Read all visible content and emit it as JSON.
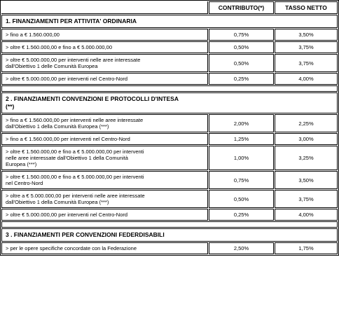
{
  "header": {
    "contributo": "CONTRIBUTO(*)",
    "tasso": "TASSO NETTO"
  },
  "sections": [
    {
      "title": "1. FINANZIAMENTI PER ATTIVITA' ORDINARIA",
      "rows": [
        {
          "label": "> fino a € 1.560.000,00",
          "contributo": "0,75%",
          "tasso": "3,50%"
        },
        {
          "label": "> oltre € 1.560.000,00 e fino a € 5.000.000,00",
          "contributo": "0,50%",
          "tasso": "3,75%"
        },
        {
          "label": "> oltre € 5.000.000,00 per interventi nelle aree interessate dall'Obiettivo 1 delle Comunità Europea",
          "contributo": "0,50%",
          "tasso": "3,75%"
        },
        {
          "label": "> oltre € 5.000.000,00 per interventi nel Centro-Nord",
          "contributo": "0,25%",
          "tasso": "4,00%"
        }
      ]
    },
    {
      "title": "2 . FINANZIAMENTI CONVENZIONI E PROTOCOLLI D'INTESA (**)",
      "rows": [
        {
          "label": "> fino a € 1.560.000,00 per interventi nelle aree interessate dall'Obiettivo 1 della Comunità Europea (***)",
          "contributo": "2,00%",
          "tasso": "2,25%"
        },
        {
          "label": "> fino a € 1.560.000,00 per interventi nel Centro-Nord",
          "contributo": "1,25%",
          "tasso": "3,00%"
        },
        {
          "label": "> oltre € 1.560.000,00 e fino a € 5.000.000,00 per interventi nelle aree interessate dall'Obiettivo 1 della Comunità Europea (***)",
          "contributo": "1,00%",
          "tasso": "3,25%"
        },
        {
          "label": "> oltre € 1.560.000,00 e fino a € 5.000.000,00 per interventi nel Centro-Nord",
          "contributo": "0,75%",
          "tasso": "3,50%"
        },
        {
          "label": "> oltre a € 5.000.000,00 per interventi nelle aree interessate dall'Obiettivo 1 della Comunità Europea (***)",
          "contributo": "0,50%",
          "tasso": "3,75%"
        },
        {
          "label": "> oltre € 5.000.000,00 per interventi nel Centro-Nord",
          "contributo": "0,25%",
          "tasso": "4,00%"
        }
      ]
    },
    {
      "title": "3 . FINANZIAMENTI PER CONVENZIONI FEDERDISABILI",
      "rows": [
        {
          "label": "> per le opere specifiche concordate con la Federazione",
          "contributo": "2,50%",
          "tasso": "1,75%"
        }
      ]
    }
  ]
}
